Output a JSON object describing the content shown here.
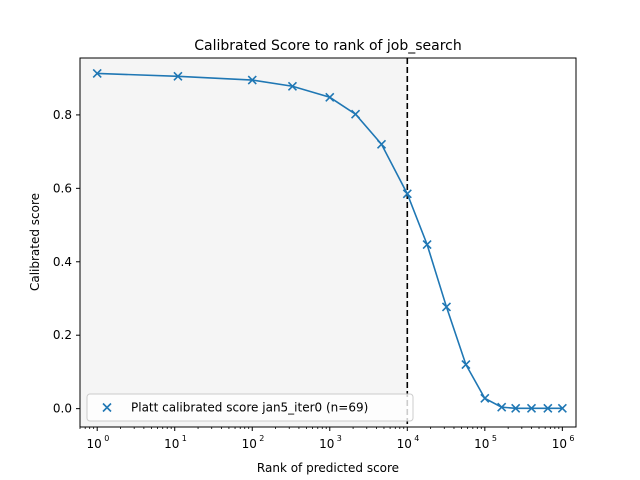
{
  "chart_data": {
    "type": "line",
    "title": "Calibrated Score to rank of job_search",
    "xlabel": "Rank of predicted score",
    "ylabel": "Calibrated score",
    "xscale": "log",
    "xlim": [
      0.6,
      1500000
    ],
    "ylim": [
      -0.05,
      0.955
    ],
    "x_ticks": [
      {
        "value": 1,
        "base": "10",
        "exp": "0"
      },
      {
        "value": 10,
        "base": "10",
        "exp": "1"
      },
      {
        "value": 100,
        "base": "10",
        "exp": "2"
      },
      {
        "value": 1000,
        "base": "10",
        "exp": "3"
      },
      {
        "value": 10000,
        "base": "10",
        "exp": "4"
      },
      {
        "value": 100000,
        "base": "10",
        "exp": "5"
      },
      {
        "value": 1000000,
        "base": "10",
        "exp": "6"
      }
    ],
    "y_ticks": [
      {
        "value": 0.0,
        "label": "0.0"
      },
      {
        "value": 0.2,
        "label": "0.2"
      },
      {
        "value": 0.4,
        "label": "0.4"
      },
      {
        "value": 0.6,
        "label": "0.6"
      },
      {
        "value": 0.8,
        "label": "0.8"
      }
    ],
    "grid": false,
    "threshold_x": 10000,
    "shaded_region": {
      "x_from": 0.6,
      "x_to": 10000,
      "color": "#f5f5f5"
    },
    "legend": {
      "placement": "lower-left",
      "label": "Platt calibrated score jan5_iter0 (n=69)"
    },
    "series": [
      {
        "name": "Platt calibrated score jan5_iter0 (n=69)",
        "color": "#1f77b4",
        "marker": "x",
        "x": [
          1,
          11,
          100,
          330,
          1000,
          2150,
          4650,
          10000,
          18000,
          32000,
          57000,
          100000,
          165000,
          250000,
          400000,
          650000,
          1000000
        ],
        "y": [
          0.913,
          0.905,
          0.895,
          0.878,
          0.848,
          0.802,
          0.72,
          0.585,
          0.447,
          0.277,
          0.12,
          0.028,
          0.004,
          0.001,
          0.001,
          0.001,
          0.001
        ]
      }
    ]
  }
}
